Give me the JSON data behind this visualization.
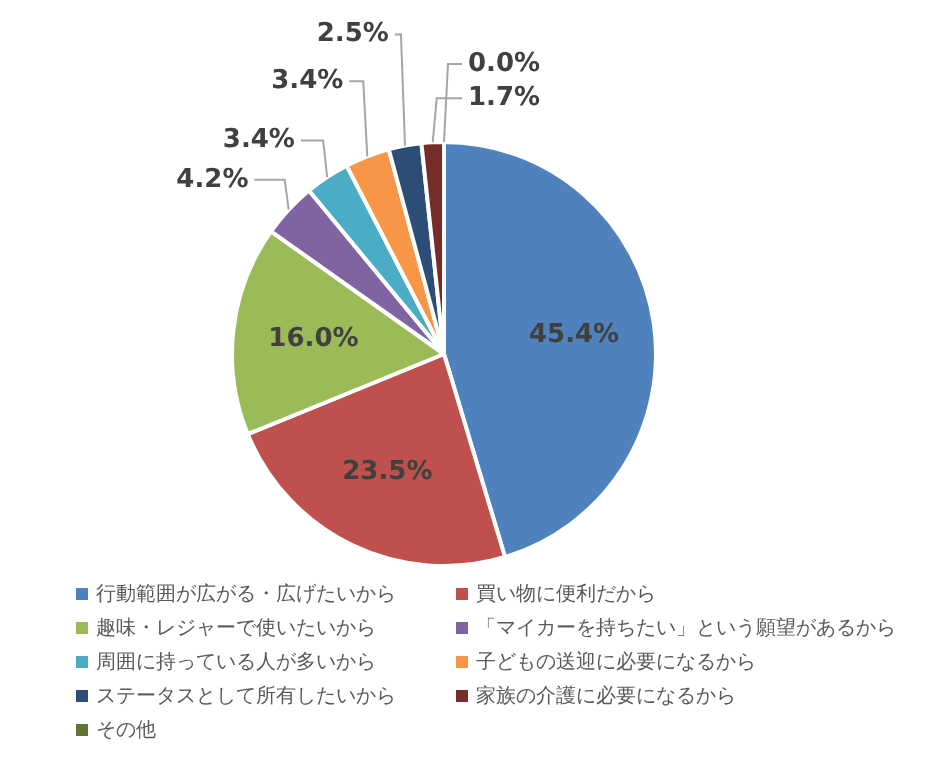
{
  "chart_data": {
    "type": "pie",
    "categories": [
      "行動範囲が広がる・広げたいから",
      "買い物に便利だから",
      "趣味・レジャーで使いたいから",
      "「マイカーを持ちたい」という願望があるから",
      "周囲に持っている人が多いから",
      "子どもの送迎に必要になるから",
      "ステータスとして所有したいから",
      "家族の介護に必要になるから",
      "その他"
    ],
    "values": [
      45.4,
      23.5,
      16.0,
      4.2,
      3.4,
      3.4,
      2.5,
      1.7,
      0.0
    ],
    "colors": [
      "#4f81bd",
      "#c0504d",
      "#9bbb59",
      "#8064a2",
      "#4bacc6",
      "#f79646",
      "#2c4d75",
      "#772c2a",
      "#5f7530"
    ],
    "value_labels": [
      "45.4%",
      "23.5%",
      "16.0%",
      "4.2%",
      "3.4%",
      "3.4%",
      "2.5%",
      "1.7%",
      "0.0%"
    ],
    "legend": "bottom"
  }
}
